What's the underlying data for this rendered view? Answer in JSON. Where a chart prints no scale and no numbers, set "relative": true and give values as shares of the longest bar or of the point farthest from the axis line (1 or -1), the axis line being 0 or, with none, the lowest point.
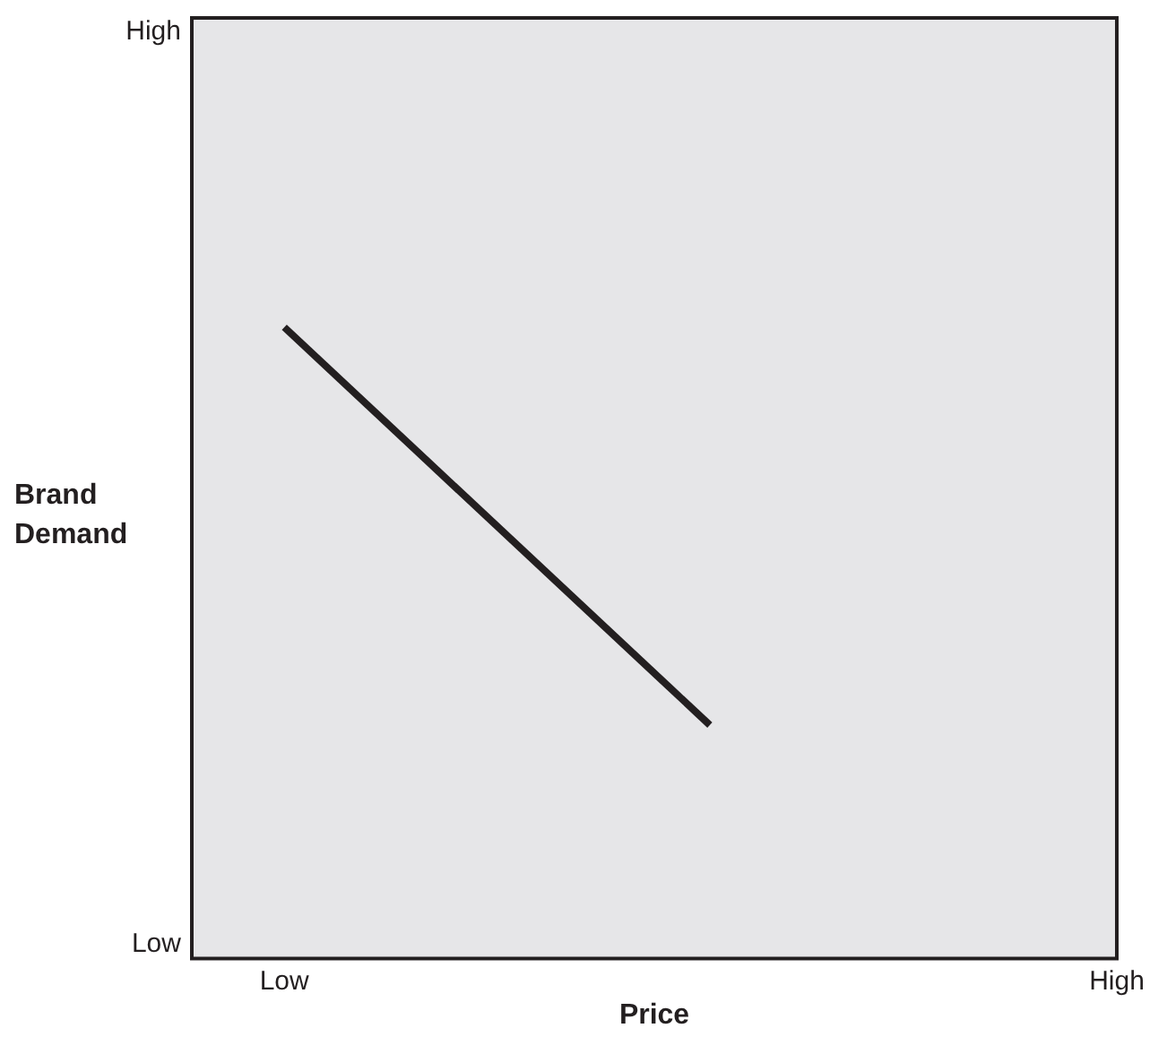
{
  "chart_data": {
    "type": "line",
    "xlabel": "Price",
    "ylabel": "Brand Demand",
    "relative": true,
    "categories": [
      null,
      null,
      null,
      null,
      null,
      "Low",
      null,
      null,
      null,
      null,
      null,
      null,
      null,
      null,
      null,
      null,
      null,
      null,
      null,
      null,
      null,
      null,
      null,
      null,
      null,
      null,
      null,
      null,
      null,
      null,
      null,
      null,
      null,
      null,
      null,
      null,
      null,
      null,
      null,
      null,
      null,
      null,
      null,
      null,
      null,
      null,
      null,
      null,
      null,
      null,
      "High"
    ],
    "series": [
      {
        "color": "#231f20",
        "values": [
          null,
          null,
          null,
          null,
          null,
          1,
          null,
          null,
          null,
          null,
          null,
          null,
          null,
          null,
          null,
          null,
          null,
          null,
          null,
          null,
          null,
          null,
          null,
          null,
          null,
          null,
          null,
          null,
          0.37,
          null,
          null,
          null,
          null,
          null,
          null,
          null,
          null,
          null,
          null,
          null,
          null,
          null,
          null,
          null,
          null,
          null,
          null,
          null,
          null,
          null,
          null
        ]
      }
    ],
    "annotations": [
      "High",
      "Low"
    ],
    "legend": false,
    "marker": "none",
    "line_style": "solid"
  }
}
